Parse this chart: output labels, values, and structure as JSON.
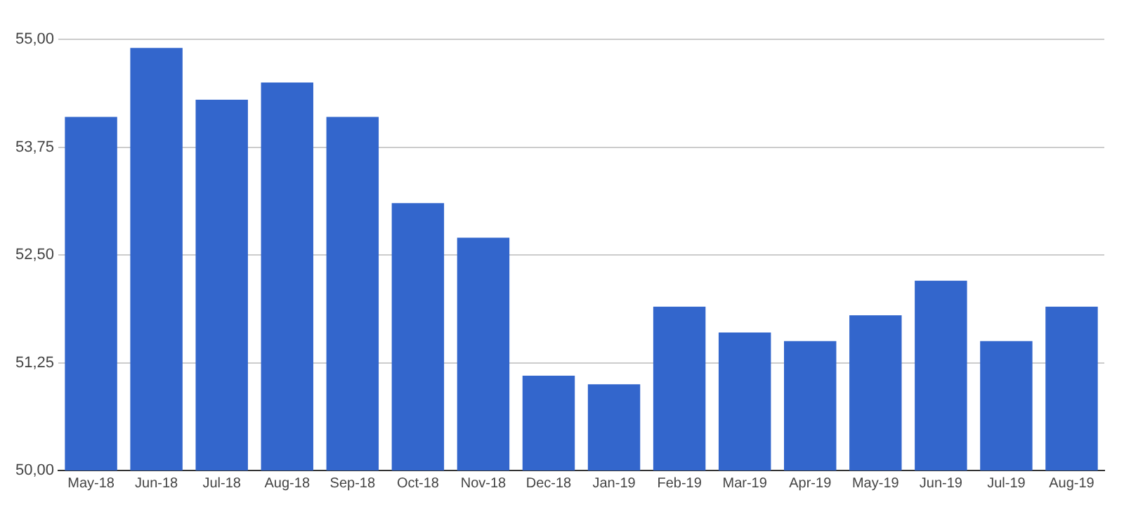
{
  "chart_data": {
    "type": "bar",
    "categories": [
      "May-18",
      "Jun-18",
      "Jul-18",
      "Aug-18",
      "Sep-18",
      "Oct-18",
      "Nov-18",
      "Dec-18",
      "Jan-19",
      "Feb-19",
      "Mar-19",
      "Apr-19",
      "May-19",
      "Jun-19",
      "Jul-19",
      "Aug-19"
    ],
    "values": [
      54.1,
      54.9,
      54.3,
      54.5,
      54.1,
      53.1,
      52.7,
      51.1,
      51.0,
      51.9,
      51.6,
      51.5,
      51.8,
      52.2,
      51.5,
      51.9
    ],
    "color": "#3366cc",
    "ylim": [
      50,
      55
    ],
    "yticks": [
      {
        "value": 50,
        "label": "50,00"
      },
      {
        "value": 51.25,
        "label": "51,25"
      },
      {
        "value": 52.5,
        "label": "52,50"
      },
      {
        "value": 53.75,
        "label": "53,75"
      },
      {
        "value": 55,
        "label": "55,00"
      }
    ],
    "grid": "y",
    "legend": false
  }
}
